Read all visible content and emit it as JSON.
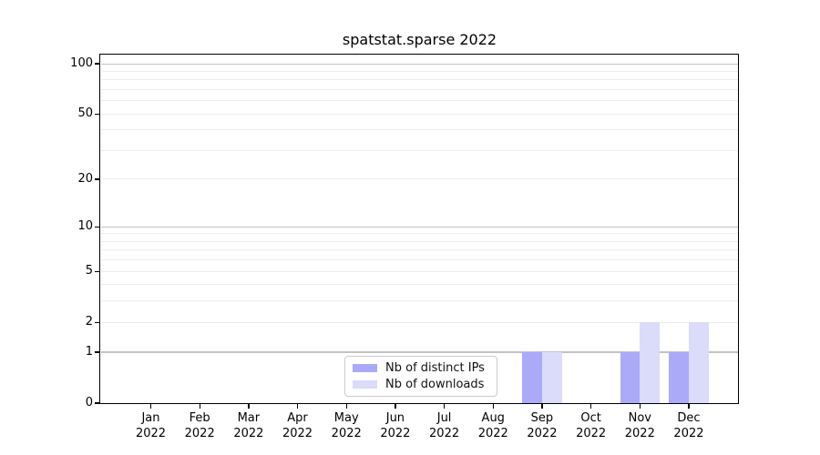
{
  "chart_data": {
    "type": "bar",
    "title": "spatstat.sparse 2022",
    "x_months": [
      "Jan",
      "Feb",
      "Mar",
      "Apr",
      "May",
      "Jun",
      "Jul",
      "Aug",
      "Sep",
      "Oct",
      "Nov",
      "Dec"
    ],
    "x_year": "2022",
    "series": [
      {
        "name": "Nb of distinct IPs",
        "color": "#aaaaf9",
        "values": [
          0,
          0,
          0,
          0,
          0,
          0,
          0,
          0,
          1,
          0,
          1,
          1
        ]
      },
      {
        "name": "Nb of downloads",
        "color": "#dbdbfa",
        "values": [
          0,
          0,
          0,
          0,
          0,
          0,
          0,
          0,
          1,
          0,
          2,
          2
        ]
      }
    ],
    "yscale": "log1p",
    "ylim": [
      0,
      113
    ],
    "yticks": [
      0,
      1,
      2,
      5,
      10,
      20,
      50,
      100
    ],
    "yticks_minor": [
      3,
      4,
      6,
      7,
      8,
      9,
      30,
      40,
      60,
      70,
      80,
      90
    ],
    "major_grid_values": [
      1,
      10,
      100
    ],
    "grid": "horizontal",
    "legend_position": "lower center-left inside plot",
    "colors": {
      "major_grid": "#c3c3c3",
      "minor_grid": "#ededed",
      "spine": "#000000",
      "background": "#ffffff"
    }
  }
}
